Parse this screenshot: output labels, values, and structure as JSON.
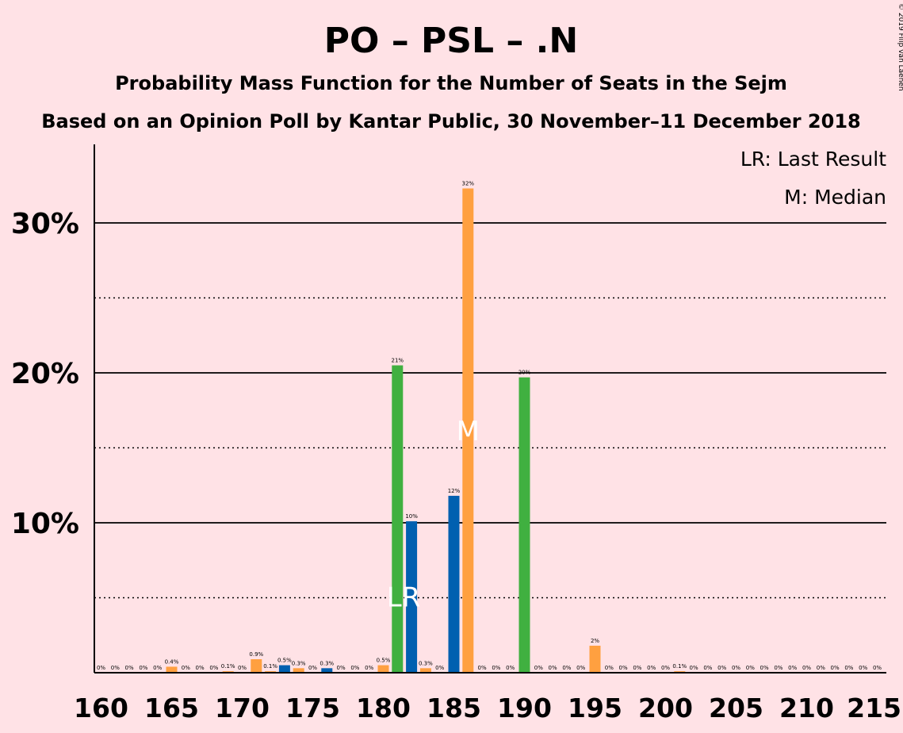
{
  "title": "PO – PSL – .N",
  "subtitle": "Probability Mass Function for the Number of Seats in the Sejm",
  "subtitle2": "Based on an Opinion Poll by Kantar Public, 30 November–11 December 2018",
  "copyright": "© 2019 Filip van Laenen",
  "legend": {
    "last_result": "LR: Last Result",
    "median": "M: Median"
  },
  "markers": {
    "last_result_label": "LR",
    "median_label": "M",
    "last_result_seat": 182,
    "median_seat": 186
  },
  "colors": {
    "background": "#FFE2E6",
    "orange": "#FFA040",
    "blue": "#0060B0",
    "green": "#40B040",
    "grid": "#000000"
  },
  "chart_data": {
    "type": "bar",
    "xlim": [
      160,
      215
    ],
    "ylim": [
      0,
      35
    ],
    "xticks": [
      "160",
      "165",
      "170",
      "175",
      "180",
      "185",
      "190",
      "195",
      "200",
      "205",
      "210",
      "215"
    ],
    "yticks": [
      {
        "value": 10,
        "label": "10%"
      },
      {
        "value": 20,
        "label": "20%"
      },
      {
        "value": 30,
        "label": "30%"
      }
    ],
    "dotted_gridlines": [
      5,
      15,
      25
    ],
    "bars": [
      {
        "x": 160,
        "value": 0,
        "label": "0%",
        "color": "orange"
      },
      {
        "x": 161,
        "value": 0,
        "label": "0%",
        "color": "orange"
      },
      {
        "x": 162,
        "value": 0,
        "label": "0%",
        "color": "orange"
      },
      {
        "x": 163,
        "value": 0,
        "label": "0%",
        "color": "orange"
      },
      {
        "x": 164,
        "value": 0,
        "label": "0%",
        "color": "orange"
      },
      {
        "x": 165,
        "value": 0.4,
        "label": "0.4%",
        "color": "orange"
      },
      {
        "x": 166,
        "value": 0,
        "label": "0%",
        "color": "orange"
      },
      {
        "x": 167,
        "value": 0,
        "label": "0%",
        "color": "orange"
      },
      {
        "x": 168,
        "value": 0,
        "label": "0%",
        "color": "orange"
      },
      {
        "x": 169,
        "value": 0.1,
        "label": "0.1%",
        "color": "orange"
      },
      {
        "x": 170,
        "value": 0,
        "label": "0%",
        "color": "orange"
      },
      {
        "x": 171,
        "value": 0.9,
        "label": "0.9%",
        "color": "orange"
      },
      {
        "x": 172,
        "value": 0.1,
        "label": "0.1%",
        "color": "orange"
      },
      {
        "x": 173,
        "value": 0.5,
        "label": "0.5%",
        "color": "blue"
      },
      {
        "x": 174,
        "value": 0.3,
        "label": "0.3%",
        "color": "orange"
      },
      {
        "x": 175,
        "value": 0,
        "label": "0%",
        "color": "orange"
      },
      {
        "x": 176,
        "value": 0.3,
        "label": "0.3%",
        "color": "blue"
      },
      {
        "x": 177,
        "value": 0,
        "label": "0%",
        "color": "orange"
      },
      {
        "x": 178,
        "value": 0,
        "label": "0%",
        "color": "orange"
      },
      {
        "x": 179,
        "value": 0,
        "label": "0%",
        "color": "orange"
      },
      {
        "x": 180,
        "value": 0.5,
        "label": "0.5%",
        "color": "orange"
      },
      {
        "x": 181,
        "value": 20.5,
        "label": "21%",
        "color": "green"
      },
      {
        "x": 182,
        "value": 10.1,
        "label": "10%",
        "color": "blue"
      },
      {
        "x": 183,
        "value": 0.3,
        "label": "0.3%",
        "color": "orange"
      },
      {
        "x": 184,
        "value": 0,
        "label": "0%",
        "color": "orange"
      },
      {
        "x": 185,
        "value": 11.8,
        "label": "12%",
        "color": "blue"
      },
      {
        "x": 186,
        "value": 32.3,
        "label": "32%",
        "color": "orange"
      },
      {
        "x": 187,
        "value": 0,
        "label": "0%",
        "color": "orange"
      },
      {
        "x": 188,
        "value": 0,
        "label": "0%",
        "color": "orange"
      },
      {
        "x": 189,
        "value": 0,
        "label": "0%",
        "color": "orange"
      },
      {
        "x": 190,
        "value": 19.7,
        "label": "20%",
        "color": "green"
      },
      {
        "x": 191,
        "value": 0,
        "label": "0%",
        "color": "orange"
      },
      {
        "x": 192,
        "value": 0,
        "label": "0%",
        "color": "orange"
      },
      {
        "x": 193,
        "value": 0,
        "label": "0%",
        "color": "orange"
      },
      {
        "x": 194,
        "value": 0,
        "label": "0%",
        "color": "orange"
      },
      {
        "x": 195,
        "value": 1.8,
        "label": "2%",
        "color": "orange"
      },
      {
        "x": 196,
        "value": 0,
        "label": "0%",
        "color": "orange"
      },
      {
        "x": 197,
        "value": 0,
        "label": "0%",
        "color": "orange"
      },
      {
        "x": 198,
        "value": 0,
        "label": "0%",
        "color": "orange"
      },
      {
        "x": 199,
        "value": 0,
        "label": "0%",
        "color": "orange"
      },
      {
        "x": 200,
        "value": 0,
        "label": "0%",
        "color": "orange"
      },
      {
        "x": 201,
        "value": 0.1,
        "label": "0.1%",
        "color": "orange"
      },
      {
        "x": 202,
        "value": 0,
        "label": "0%",
        "color": "orange"
      },
      {
        "x": 203,
        "value": 0,
        "label": "0%",
        "color": "orange"
      },
      {
        "x": 204,
        "value": 0,
        "label": "0%",
        "color": "orange"
      },
      {
        "x": 205,
        "value": 0,
        "label": "0%",
        "color": "orange"
      },
      {
        "x": 206,
        "value": 0,
        "label": "0%",
        "color": "orange"
      },
      {
        "x": 207,
        "value": 0,
        "label": "0%",
        "color": "orange"
      },
      {
        "x": 208,
        "value": 0,
        "label": "0%",
        "color": "orange"
      },
      {
        "x": 209,
        "value": 0,
        "label": "0%",
        "color": "orange"
      },
      {
        "x": 210,
        "value": 0,
        "label": "0%",
        "color": "orange"
      },
      {
        "x": 211,
        "value": 0,
        "label": "0%",
        "color": "orange"
      },
      {
        "x": 212,
        "value": 0,
        "label": "0%",
        "color": "orange"
      },
      {
        "x": 213,
        "value": 0,
        "label": "0%",
        "color": "orange"
      },
      {
        "x": 214,
        "value": 0,
        "label": "0%",
        "color": "orange"
      },
      {
        "x": 215,
        "value": 0,
        "label": "0%",
        "color": "orange"
      }
    ]
  }
}
